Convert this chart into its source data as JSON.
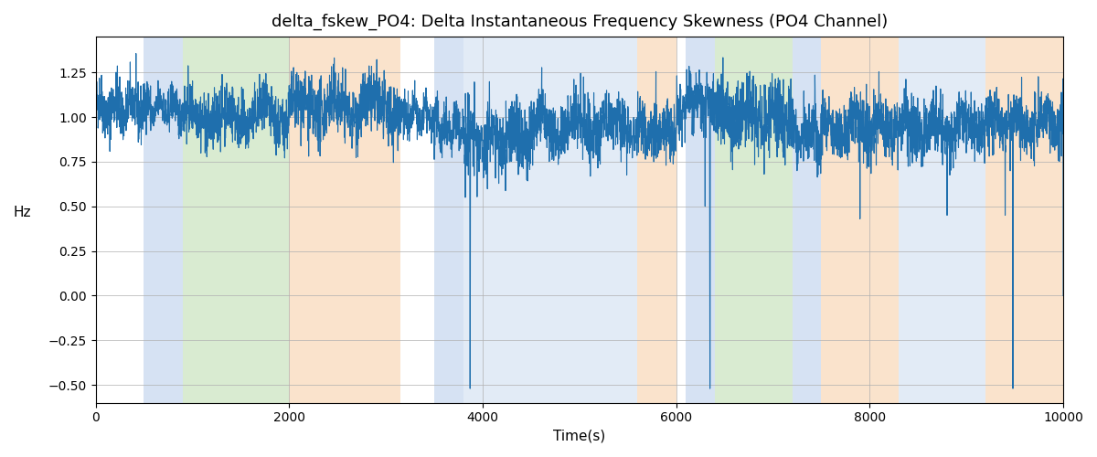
{
  "title": "delta_fskew_PO4: Delta Instantaneous Frequency Skewness (PO4 Channel)",
  "xlabel": "Time(s)",
  "ylabel": "Hz",
  "xlim": [
    0,
    10000
  ],
  "ylim": [
    -0.6,
    1.45
  ],
  "yticks": [
    -0.5,
    -0.25,
    0.0,
    0.25,
    0.5,
    0.75,
    1.0,
    1.25
  ],
  "xticks": [
    0,
    2000,
    4000,
    6000,
    8000,
    10000
  ],
  "line_color": "#1f6fad",
  "line_width": 0.8,
  "background_color": "#ffffff",
  "grid_color": "#b0b0b0",
  "colored_bands": [
    {
      "xmin": 500,
      "xmax": 900,
      "color": "#aec6e8",
      "alpha": 0.5
    },
    {
      "xmin": 900,
      "xmax": 2000,
      "color": "#b5d9a5",
      "alpha": 0.5
    },
    {
      "xmin": 2000,
      "xmax": 3150,
      "color": "#f7c99a",
      "alpha": 0.5
    },
    {
      "xmin": 3500,
      "xmax": 3800,
      "color": "#aec6e8",
      "alpha": 0.5
    },
    {
      "xmin": 3800,
      "xmax": 5600,
      "color": "#aec6e8",
      "alpha": 0.35
    },
    {
      "xmin": 5600,
      "xmax": 6000,
      "color": "#f7c99a",
      "alpha": 0.5
    },
    {
      "xmin": 6100,
      "xmax": 6400,
      "color": "#aec6e8",
      "alpha": 0.5
    },
    {
      "xmin": 6400,
      "xmax": 7200,
      "color": "#b5d9a5",
      "alpha": 0.5
    },
    {
      "xmin": 7200,
      "xmax": 7500,
      "color": "#aec6e8",
      "alpha": 0.5
    },
    {
      "xmin": 7500,
      "xmax": 8300,
      "color": "#f7c99a",
      "alpha": 0.5
    },
    {
      "xmin": 8300,
      "xmax": 9200,
      "color": "#aec6e8",
      "alpha": 0.35
    },
    {
      "xmin": 9200,
      "xmax": 10000,
      "color": "#f7c99a",
      "alpha": 0.5
    }
  ],
  "signal_params": {
    "base": 1.02,
    "noise_std": 0.07,
    "n_points": 5000,
    "segments": [
      {
        "t0": 0,
        "t1": 500,
        "mean": 1.05,
        "std": 0.08
      },
      {
        "t0": 500,
        "t1": 900,
        "mean": 1.05,
        "std": 0.06
      },
      {
        "t0": 900,
        "t1": 2000,
        "mean": 1.0,
        "std": 0.08
      },
      {
        "t0": 2000,
        "t1": 3150,
        "mean": 1.05,
        "std": 0.09
      },
      {
        "t0": 3150,
        "t1": 3500,
        "mean": 1.0,
        "std": 0.06
      },
      {
        "t0": 3500,
        "t1": 3800,
        "mean": 0.95,
        "std": 0.07
      },
      {
        "t0": 3800,
        "t1": 4500,
        "mean": 0.88,
        "std": 0.1
      },
      {
        "t0": 4500,
        "t1": 5600,
        "mean": 0.95,
        "std": 0.09
      },
      {
        "t0": 5600,
        "t1": 6000,
        "mean": 0.92,
        "std": 0.08
      },
      {
        "t0": 6000,
        "t1": 6100,
        "mean": 1.05,
        "std": 0.07
      },
      {
        "t0": 6100,
        "t1": 6400,
        "mean": 1.1,
        "std": 0.08
      },
      {
        "t0": 6400,
        "t1": 7200,
        "mean": 1.0,
        "std": 0.1
      },
      {
        "t0": 7200,
        "t1": 7500,
        "mean": 0.9,
        "std": 0.09
      },
      {
        "t0": 7500,
        "t1": 8300,
        "mean": 0.95,
        "std": 0.09
      },
      {
        "t0": 8300,
        "t1": 9200,
        "mean": 0.95,
        "std": 0.09
      },
      {
        "t0": 9200,
        "t1": 10000,
        "mean": 0.97,
        "std": 0.08
      }
    ],
    "big_dips": [
      {
        "t": 3870,
        "val": -0.52
      },
      {
        "t": 6350,
        "val": -0.52
      },
      {
        "t": 9480,
        "val": -0.52
      }
    ],
    "small_dips": [
      {
        "t": 3820,
        "val": 0.55
      },
      {
        "t": 4050,
        "val": 0.6
      },
      {
        "t": 6300,
        "val": 0.5
      },
      {
        "t": 7250,
        "val": 0.7
      },
      {
        "t": 7900,
        "val": 0.43
      },
      {
        "t": 8800,
        "val": 0.45
      },
      {
        "t": 9400,
        "val": 0.45
      }
    ]
  }
}
